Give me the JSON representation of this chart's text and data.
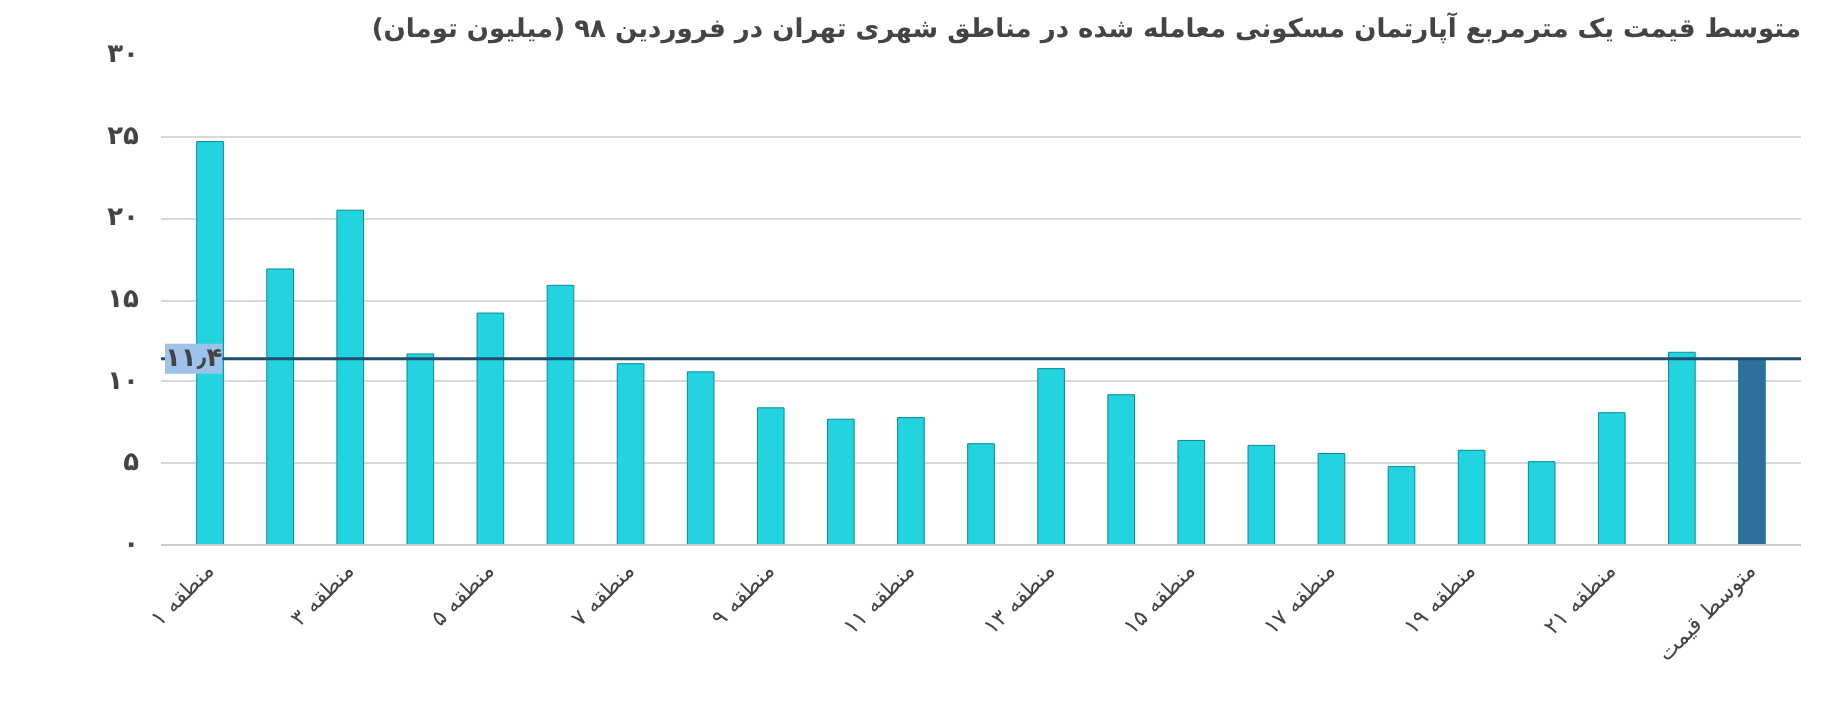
{
  "chart_data": {
    "type": "bar",
    "title": "متوسط قیمت یک مترمربع آپارتمان مسکونی معامله شده در مناطق شهری تهران در فروردین ۹۸ (میلیون تومان)",
    "categories": [
      "منطقه ۱",
      null,
      "منطقه ۳",
      null,
      "منطقه ۵",
      null,
      "منطقه ۷",
      null,
      "منطقه ۹",
      null,
      "منطقه ۱۱",
      null,
      "منطقه ۱۳",
      null,
      "منطقه ۱۵",
      null,
      "منطقه ۱۷",
      null,
      "منطقه ۱۹",
      null,
      "منطقه ۲۱",
      null,
      "متوسط قیمت"
    ],
    "values": [
      24.7,
      16.9,
      20.5,
      11.7,
      14.2,
      15.9,
      11.1,
      10.6,
      8.4,
      7.7,
      7.8,
      6.2,
      10.8,
      9.2,
      6.4,
      6.1,
      5.6,
      4.8,
      5.8,
      5.1,
      8.1,
      11.8,
      11.4
    ],
    "colors": [
      "#22d3e0",
      "#22d3e0",
      "#22d3e0",
      "#22d3e0",
      "#22d3e0",
      "#22d3e0",
      "#22d3e0",
      "#22d3e0",
      "#22d3e0",
      "#22d3e0",
      "#22d3e0",
      "#22d3e0",
      "#22d3e0",
      "#22d3e0",
      "#22d3e0",
      "#22d3e0",
      "#22d3e0",
      "#22d3e0",
      "#22d3e0",
      "#22d3e0",
      "#22d3e0",
      "#22d3e0",
      "#2f6f9f"
    ],
    "ylim": [
      0,
      30
    ],
    "yticks": [
      {
        "value": 0,
        "label": "۰"
      },
      {
        "value": 5,
        "label": "۵"
      },
      {
        "value": 10,
        "label": "۱۰"
      },
      {
        "value": 15,
        "label": "۱۵"
      },
      {
        "value": 20,
        "label": "۲۰"
      },
      {
        "value": 25,
        "label": "۲۵"
      },
      {
        "value": 30,
        "label": "۳۰"
      }
    ],
    "ref_lines": [
      {
        "axis": "y",
        "value": 11.4,
        "label": "۱۱٫۴",
        "color": "#1f4e6e"
      }
    ],
    "grid": "y"
  }
}
